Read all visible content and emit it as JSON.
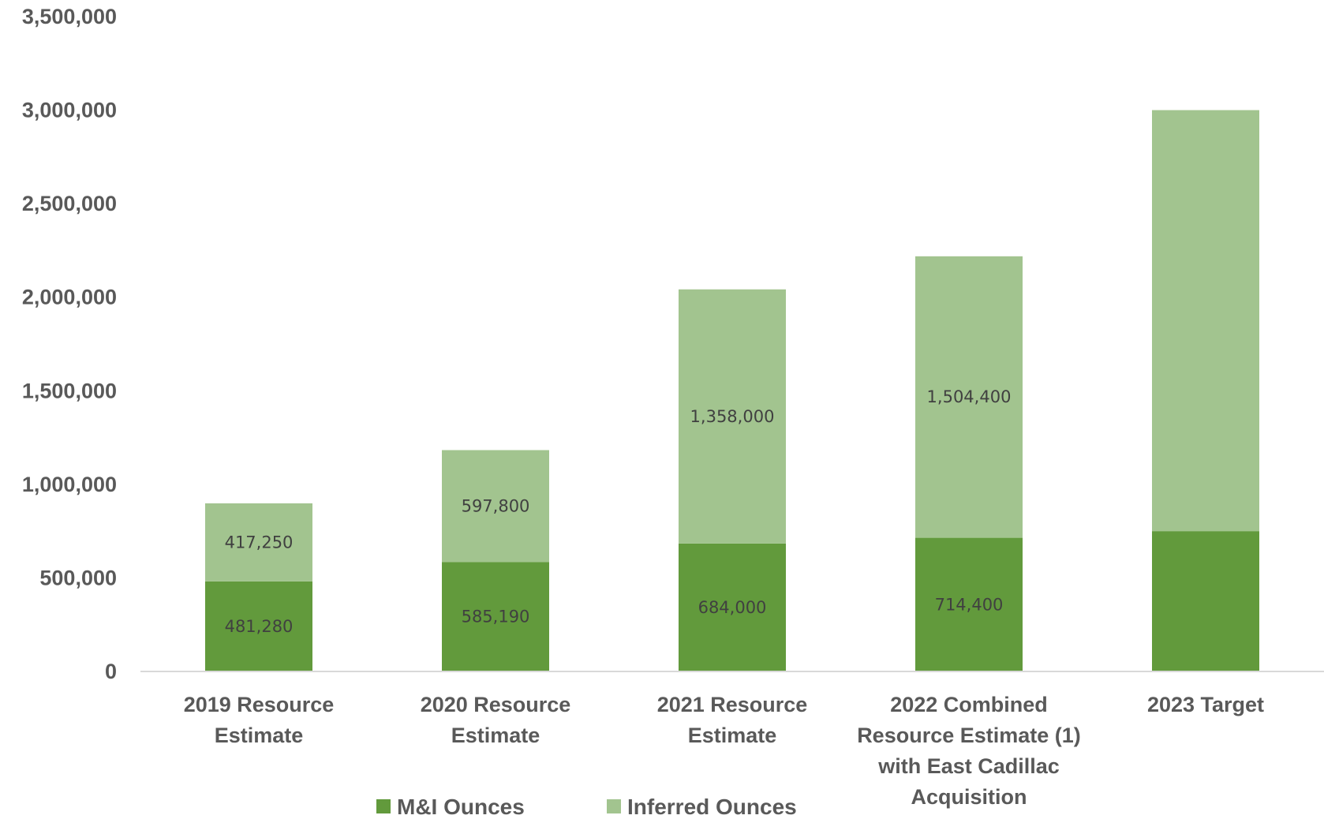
{
  "chart_data": {
    "type": "bar",
    "stacked": true,
    "categories": [
      [
        "2019 Resource",
        "Estimate"
      ],
      [
        "2020 Resource",
        "Estimate"
      ],
      [
        "2021 Resource",
        "Estimate"
      ],
      [
        "2022 Combined",
        "Resource Estimate (1)",
        "with East Cadillac",
        "Acquisition"
      ],
      [
        "2023 Target"
      ]
    ],
    "series": [
      {
        "name": "M&I Ounces",
        "color": "#629a3c",
        "values": [
          481280,
          585190,
          684000,
          714400,
          750000
        ],
        "labels": [
          "481,280",
          "585,190",
          "684,000",
          "714,400",
          null
        ]
      },
      {
        "name": "Inferred Ounces",
        "color": "#a2c48f",
        "values": [
          417250,
          597800,
          1358000,
          1504400,
          2250000
        ],
        "labels": [
          "417,250",
          "597,800",
          "1,358,000",
          "1,504,400",
          null
        ]
      }
    ],
    "ylim": [
      0,
      3500000
    ],
    "yticks": [
      0,
      500000,
      1000000,
      1500000,
      2000000,
      2500000,
      3000000,
      3500000
    ],
    "ytick_labels": [
      "0",
      "500,000",
      "1,000,000",
      "1,500,000",
      "2,000,000",
      "2,500,000",
      "3,000,000",
      "3,500,000"
    ],
    "grid": false,
    "legend_position": "bottom",
    "title": "",
    "xlabel": "",
    "ylabel": ""
  }
}
